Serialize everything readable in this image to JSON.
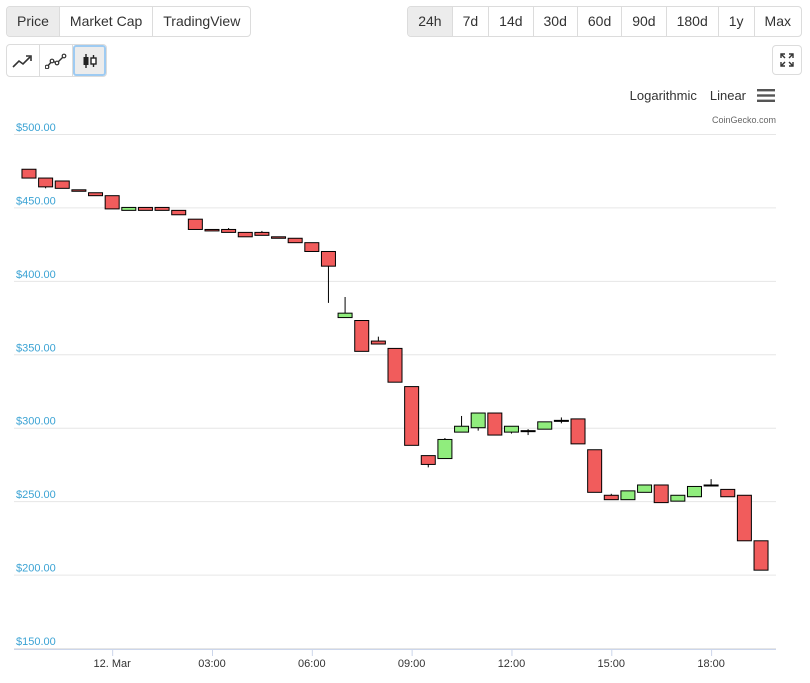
{
  "tabs": [
    "Price",
    "Market Cap",
    "TradingView"
  ],
  "active_tab": 0,
  "ranges": [
    "24h",
    "7d",
    "14d",
    "30d",
    "60d",
    "90d",
    "180d",
    "1y",
    "Max"
  ],
  "active_range": 0,
  "chart_types": [
    "line-chart-icon",
    "line-points-chart-icon",
    "candlestick-chart-icon"
  ],
  "active_chart_type": 2,
  "scale": {
    "log_label": "Logarithmic",
    "linear_label": "Linear"
  },
  "credit": "CoinGecko.com",
  "colors": {
    "up": "#90ed7d",
    "down": "#f15c5c",
    "axis_label": "#3ba3d4"
  },
  "chart_data": {
    "type": "candlestick",
    "yaxis": {
      "min": 150,
      "max": 500,
      "ticks": [
        500,
        450,
        400,
        350,
        300,
        250,
        200,
        150
      ],
      "tick_labels": [
        "$500.00",
        "$450.00",
        "$400.00",
        "$350.00",
        "$300.00",
        "$250.00",
        "$200.00",
        "$150.00"
      ]
    },
    "xaxis": {
      "min": -2.95,
      "max": 19.95,
      "ticks": [
        0,
        3,
        6,
        9,
        12,
        15,
        18
      ],
      "tick_labels": [
        "12. Mar",
        "03:00",
        "06:00",
        "09:00",
        "12:00",
        "15:00",
        "18:00"
      ]
    },
    "candles": [
      {
        "t": -2.5,
        "o": 476,
        "h": 476,
        "l": 470,
        "c": 470
      },
      {
        "t": -2.0,
        "o": 470,
        "h": 470,
        "l": 463,
        "c": 464
      },
      {
        "t": -1.5,
        "o": 468,
        "h": 468,
        "l": 463,
        "c": 463
      },
      {
        "t": -1.0,
        "o": 462,
        "h": 462,
        "l": 461,
        "c": 461
      },
      {
        "t": -0.5,
        "o": 460,
        "h": 460,
        "l": 458,
        "c": 458
      },
      {
        "t": 0.0,
        "o": 458,
        "h": 458,
        "l": 449,
        "c": 449
      },
      {
        "t": 0.5,
        "o": 448,
        "h": 450,
        "l": 448,
        "c": 450
      },
      {
        "t": 1.0,
        "o": 450,
        "h": 450,
        "l": 448,
        "c": 448
      },
      {
        "t": 1.5,
        "o": 450,
        "h": 450,
        "l": 448,
        "c": 448
      },
      {
        "t": 2.0,
        "o": 448,
        "h": 448,
        "l": 445,
        "c": 445
      },
      {
        "t": 2.5,
        "o": 442,
        "h": 442,
        "l": 435,
        "c": 435
      },
      {
        "t": 3.0,
        "o": 435,
        "h": 435,
        "l": 434,
        "c": 434
      },
      {
        "t": 3.5,
        "o": 435,
        "h": 436,
        "l": 433,
        "c": 433
      },
      {
        "t": 4.0,
        "o": 433,
        "h": 433,
        "l": 430,
        "c": 430
      },
      {
        "t": 4.5,
        "o": 433,
        "h": 434,
        "l": 431,
        "c": 431
      },
      {
        "t": 5.0,
        "o": 430,
        "h": 430,
        "l": 429,
        "c": 429
      },
      {
        "t": 5.5,
        "o": 429,
        "h": 429,
        "l": 426,
        "c": 426
      },
      {
        "t": 6.0,
        "o": 426,
        "h": 426,
        "l": 420,
        "c": 420
      },
      {
        "t": 6.5,
        "o": 420,
        "h": 420,
        "l": 385,
        "c": 410
      },
      {
        "t": 7.0,
        "o": 375,
        "h": 389,
        "l": 375,
        "c": 378
      },
      {
        "t": 7.5,
        "o": 373,
        "h": 373,
        "l": 352,
        "c": 352
      },
      {
        "t": 8.0,
        "o": 359,
        "h": 362,
        "l": 357,
        "c": 357
      },
      {
        "t": 8.5,
        "o": 354,
        "h": 354,
        "l": 331,
        "c": 331
      },
      {
        "t": 9.0,
        "o": 328,
        "h": 328,
        "l": 288,
        "c": 288
      },
      {
        "t": 9.5,
        "o": 281,
        "h": 281,
        "l": 273,
        "c": 275
      },
      {
        "t": 10.0,
        "o": 279,
        "h": 293,
        "l": 279,
        "c": 292
      },
      {
        "t": 10.5,
        "o": 297,
        "h": 308,
        "l": 297,
        "c": 301
      },
      {
        "t": 11.0,
        "o": 300,
        "h": 310,
        "l": 298,
        "c": 310
      },
      {
        "t": 11.5,
        "o": 310,
        "h": 310,
        "l": 295,
        "c": 295
      },
      {
        "t": 12.0,
        "o": 297,
        "h": 301,
        "l": 296,
        "c": 301
      },
      {
        "t": 12.5,
        "o": 298,
        "h": 299,
        "l": 295,
        "c": 298
      },
      {
        "t": 13.0,
        "o": 299,
        "h": 304,
        "l": 299,
        "c": 304
      },
      {
        "t": 13.5,
        "o": 305,
        "h": 307,
        "l": 303,
        "c": 305
      },
      {
        "t": 14.0,
        "o": 306,
        "h": 306,
        "l": 289,
        "c": 289
      },
      {
        "t": 14.5,
        "o": 285,
        "h": 285,
        "l": 256,
        "c": 256
      },
      {
        "t": 15.0,
        "o": 254,
        "h": 255,
        "l": 251,
        "c": 251
      },
      {
        "t": 15.5,
        "o": 251,
        "h": 257,
        "l": 251,
        "c": 257
      },
      {
        "t": 16.0,
        "o": 256,
        "h": 261,
        "l": 256,
        "c": 261
      },
      {
        "t": 16.5,
        "o": 261,
        "h": 261,
        "l": 249,
        "c": 249
      },
      {
        "t": 17.0,
        "o": 250,
        "h": 254,
        "l": 250,
        "c": 254
      },
      {
        "t": 17.5,
        "o": 253,
        "h": 260,
        "l": 253,
        "c": 260
      },
      {
        "t": 18.0,
        "o": 261,
        "h": 265,
        "l": 260,
        "c": 261
      },
      {
        "t": 18.5,
        "o": 258,
        "h": 258,
        "l": 253,
        "c": 253
      },
      {
        "t": 19.0,
        "o": 254,
        "h": 254,
        "l": 223,
        "c": 223
      },
      {
        "t": 19.5,
        "o": 223,
        "h": 223,
        "l": 203,
        "c": 203
      }
    ]
  }
}
